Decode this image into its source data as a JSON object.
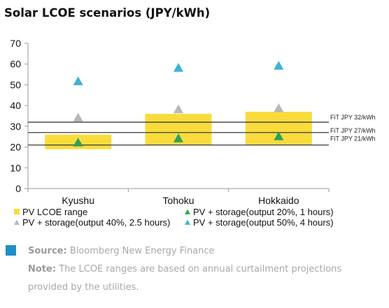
{
  "title": "Solar LCOE scenarios (JPY/kWh)",
  "chart_data": {
    "type": "bar",
    "categories": [
      "Kyushu",
      "Tohoku",
      "Hokkaido"
    ],
    "ylim": [
      0,
      70
    ],
    "yticks": [
      0,
      10,
      20,
      30,
      40,
      50,
      60,
      70
    ],
    "grid": false,
    "legend_position": "bottom",
    "colors": {
      "range": "#f9dc3c",
      "green": "#2ea05a",
      "gray": "#b8b8b8",
      "blue": "#3cb4d6",
      "line": "#3c3c3c"
    },
    "ranges": [
      {
        "category": "Kyushu",
        "low": 19,
        "high": 26
      },
      {
        "category": "Tohoku",
        "low": 21,
        "high": 36
      },
      {
        "category": "Hokkaido",
        "low": 21,
        "high": 37
      }
    ],
    "series": [
      {
        "name": "PV LCOE range",
        "marker": "square",
        "color": "#f9dc3c"
      },
      {
        "name": "PV + storage(output 20%, 1 hours)",
        "marker": "triangle",
        "color": "#2ea05a",
        "values": [
          22,
          24,
          25
        ]
      },
      {
        "name": "PV + storage(output 40%, 2.5 hours)",
        "marker": "triangle",
        "color": "#b8b8b8",
        "values": [
          34,
          38,
          38.5
        ]
      },
      {
        "name": "PV + storage(output 50%, 4 hours)",
        "marker": "triangle",
        "color": "#3cb4d6",
        "values": [
          51.5,
          58,
          59
        ]
      }
    ],
    "reference_lines": [
      {
        "label": "FiT JPY 32/kWh",
        "value": 32
      },
      {
        "label": "FiT JPY 27/kWh",
        "value": 27
      },
      {
        "label": "FiT JPY 21/kWh",
        "value": 21
      }
    ]
  },
  "footer": {
    "source_label": "Source:",
    "source_text": "Bloomberg New Energy Finance",
    "note_label": "Note:",
    "note_text_1": "The LCOE ranges are based on annual curtailment projections",
    "note_text_2": "provided by the utilities."
  }
}
